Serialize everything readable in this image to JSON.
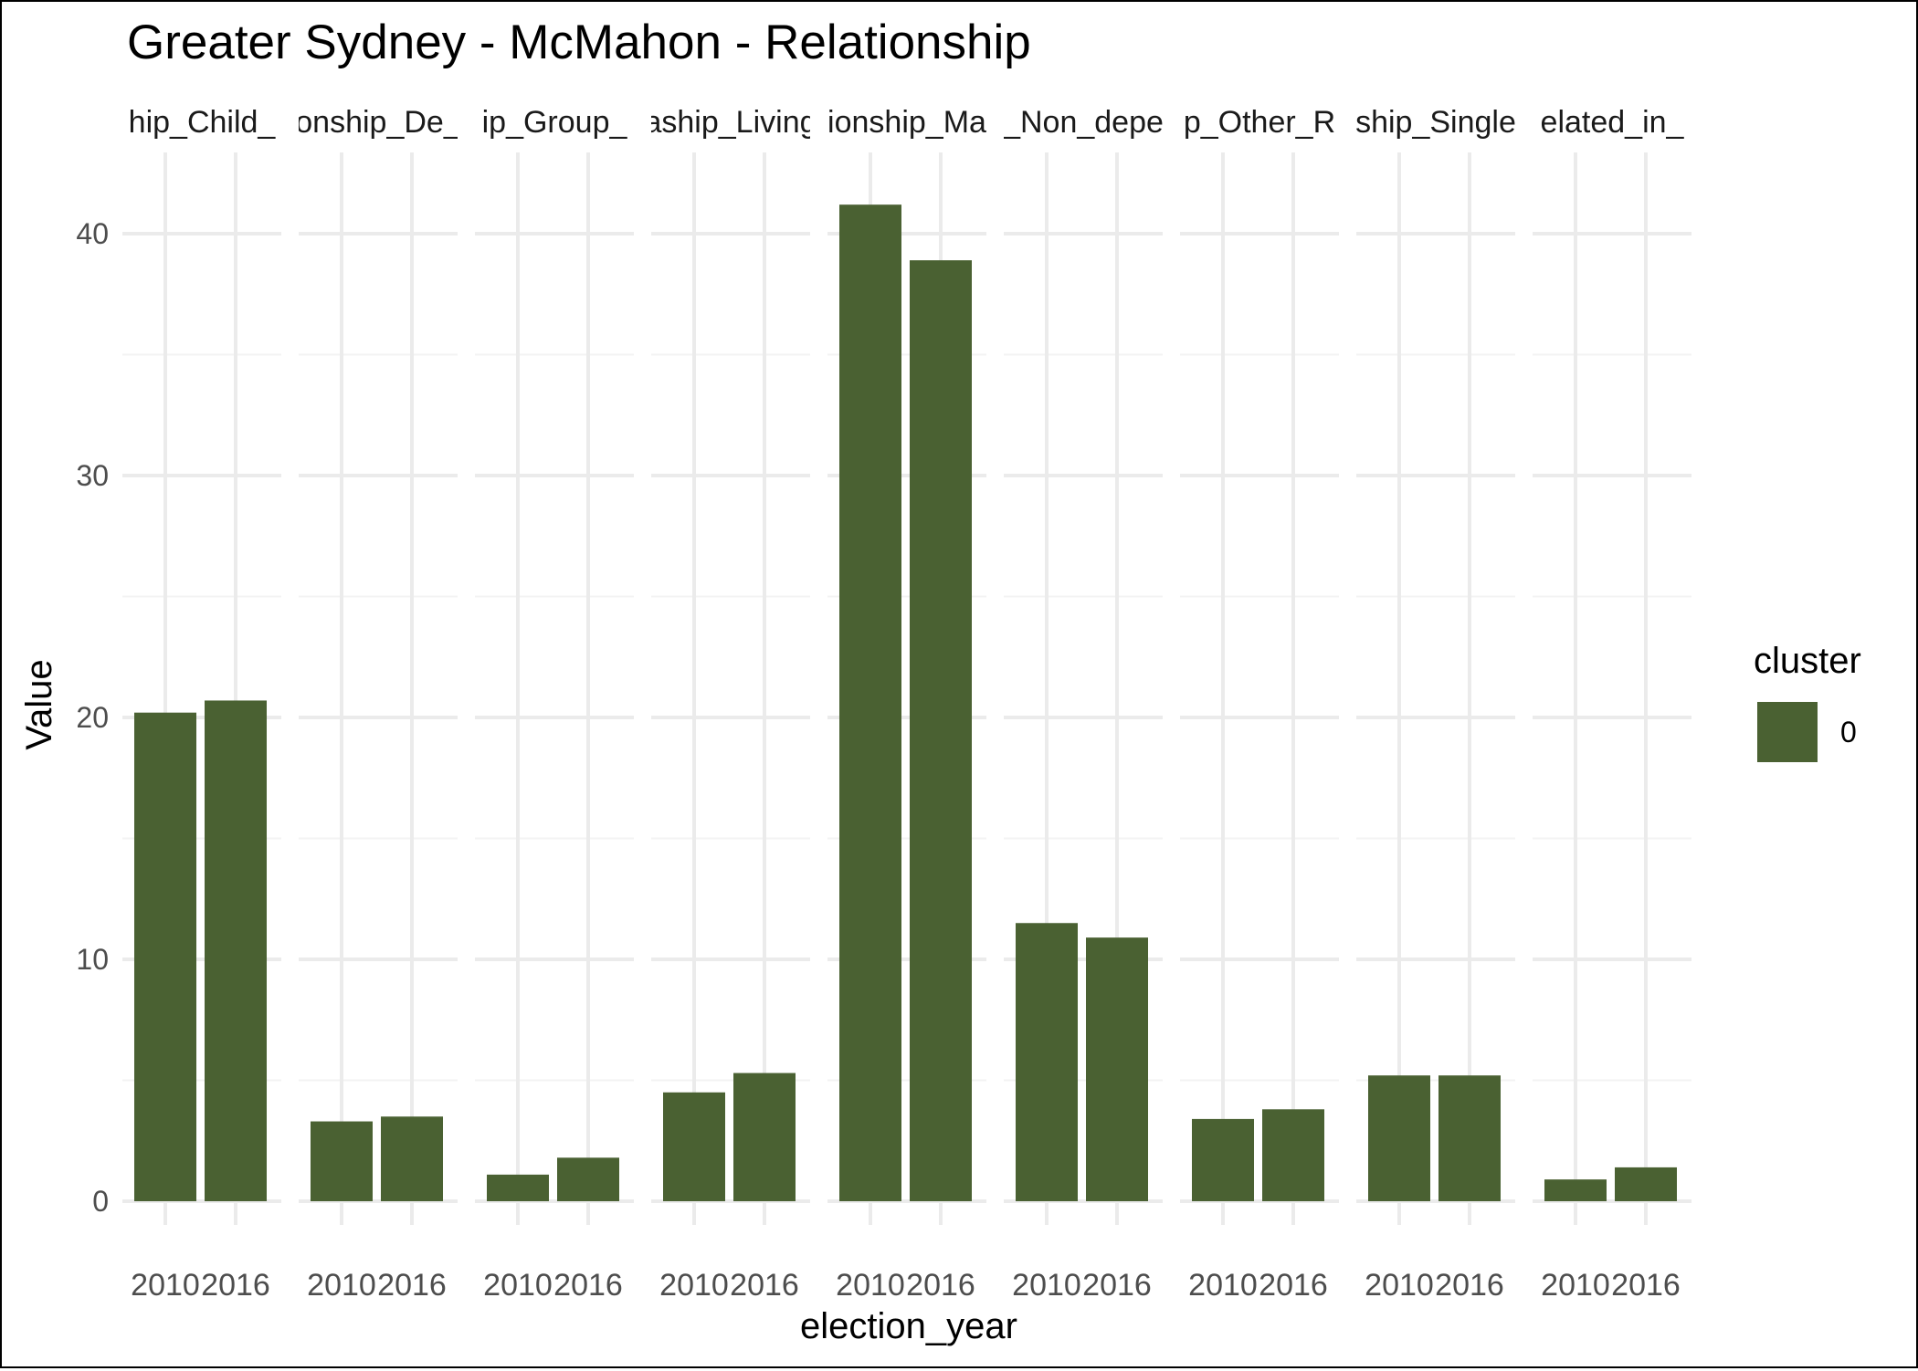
{
  "chart_data": {
    "type": "bar",
    "title": "Greater Sydney - McMahon - Relationship",
    "xlabel": "election_year",
    "ylabel": "Value",
    "ylim": [
      0,
      43
    ],
    "yticks": [
      0,
      10,
      20,
      30,
      40
    ],
    "grid": true,
    "facets": [
      {
        "strip": "hip_Child_",
        "categories": [
          "2010",
          "2016"
        ],
        "values": [
          20.2,
          20.7
        ]
      },
      {
        "strip": "onship_De_",
        "categories": [
          "2010",
          "2016"
        ],
        "values": [
          3.3,
          3.5
        ]
      },
      {
        "strip": "ip_Group_",
        "categories": [
          "2010",
          "2016"
        ],
        "values": [
          1.1,
          1.8
        ]
      },
      {
        "strip": "aship_Living",
        "categories": [
          "2010",
          "2016"
        ],
        "values": [
          4.5,
          5.3
        ]
      },
      {
        "strip": "ionship_Ma",
        "categories": [
          "2010",
          "2016"
        ],
        "values": [
          41.2,
          38.9
        ]
      },
      {
        "strip": "_Non_depe",
        "categories": [
          "2010",
          "2016"
        ],
        "values": [
          11.5,
          10.9
        ]
      },
      {
        "strip": "p_Other_R",
        "categories": [
          "2010",
          "2016"
        ],
        "values": [
          3.4,
          3.8
        ]
      },
      {
        "strip": "ship_Single",
        "categories": [
          "2010",
          "2016"
        ],
        "values": [
          5.2,
          5.2
        ]
      },
      {
        "strip": "elated_in_",
        "categories": [
          "2010",
          "2016"
        ],
        "values": [
          0.9,
          1.4
        ]
      }
    ],
    "legend": {
      "title": "cluster",
      "placement": "right",
      "entries": [
        {
          "label": "0",
          "color": "#4a6132"
        }
      ]
    },
    "colors": {
      "bar": "#4a6132",
      "grid_major": "#ebebeb",
      "grid_minor": "#f3f3f3"
    }
  }
}
